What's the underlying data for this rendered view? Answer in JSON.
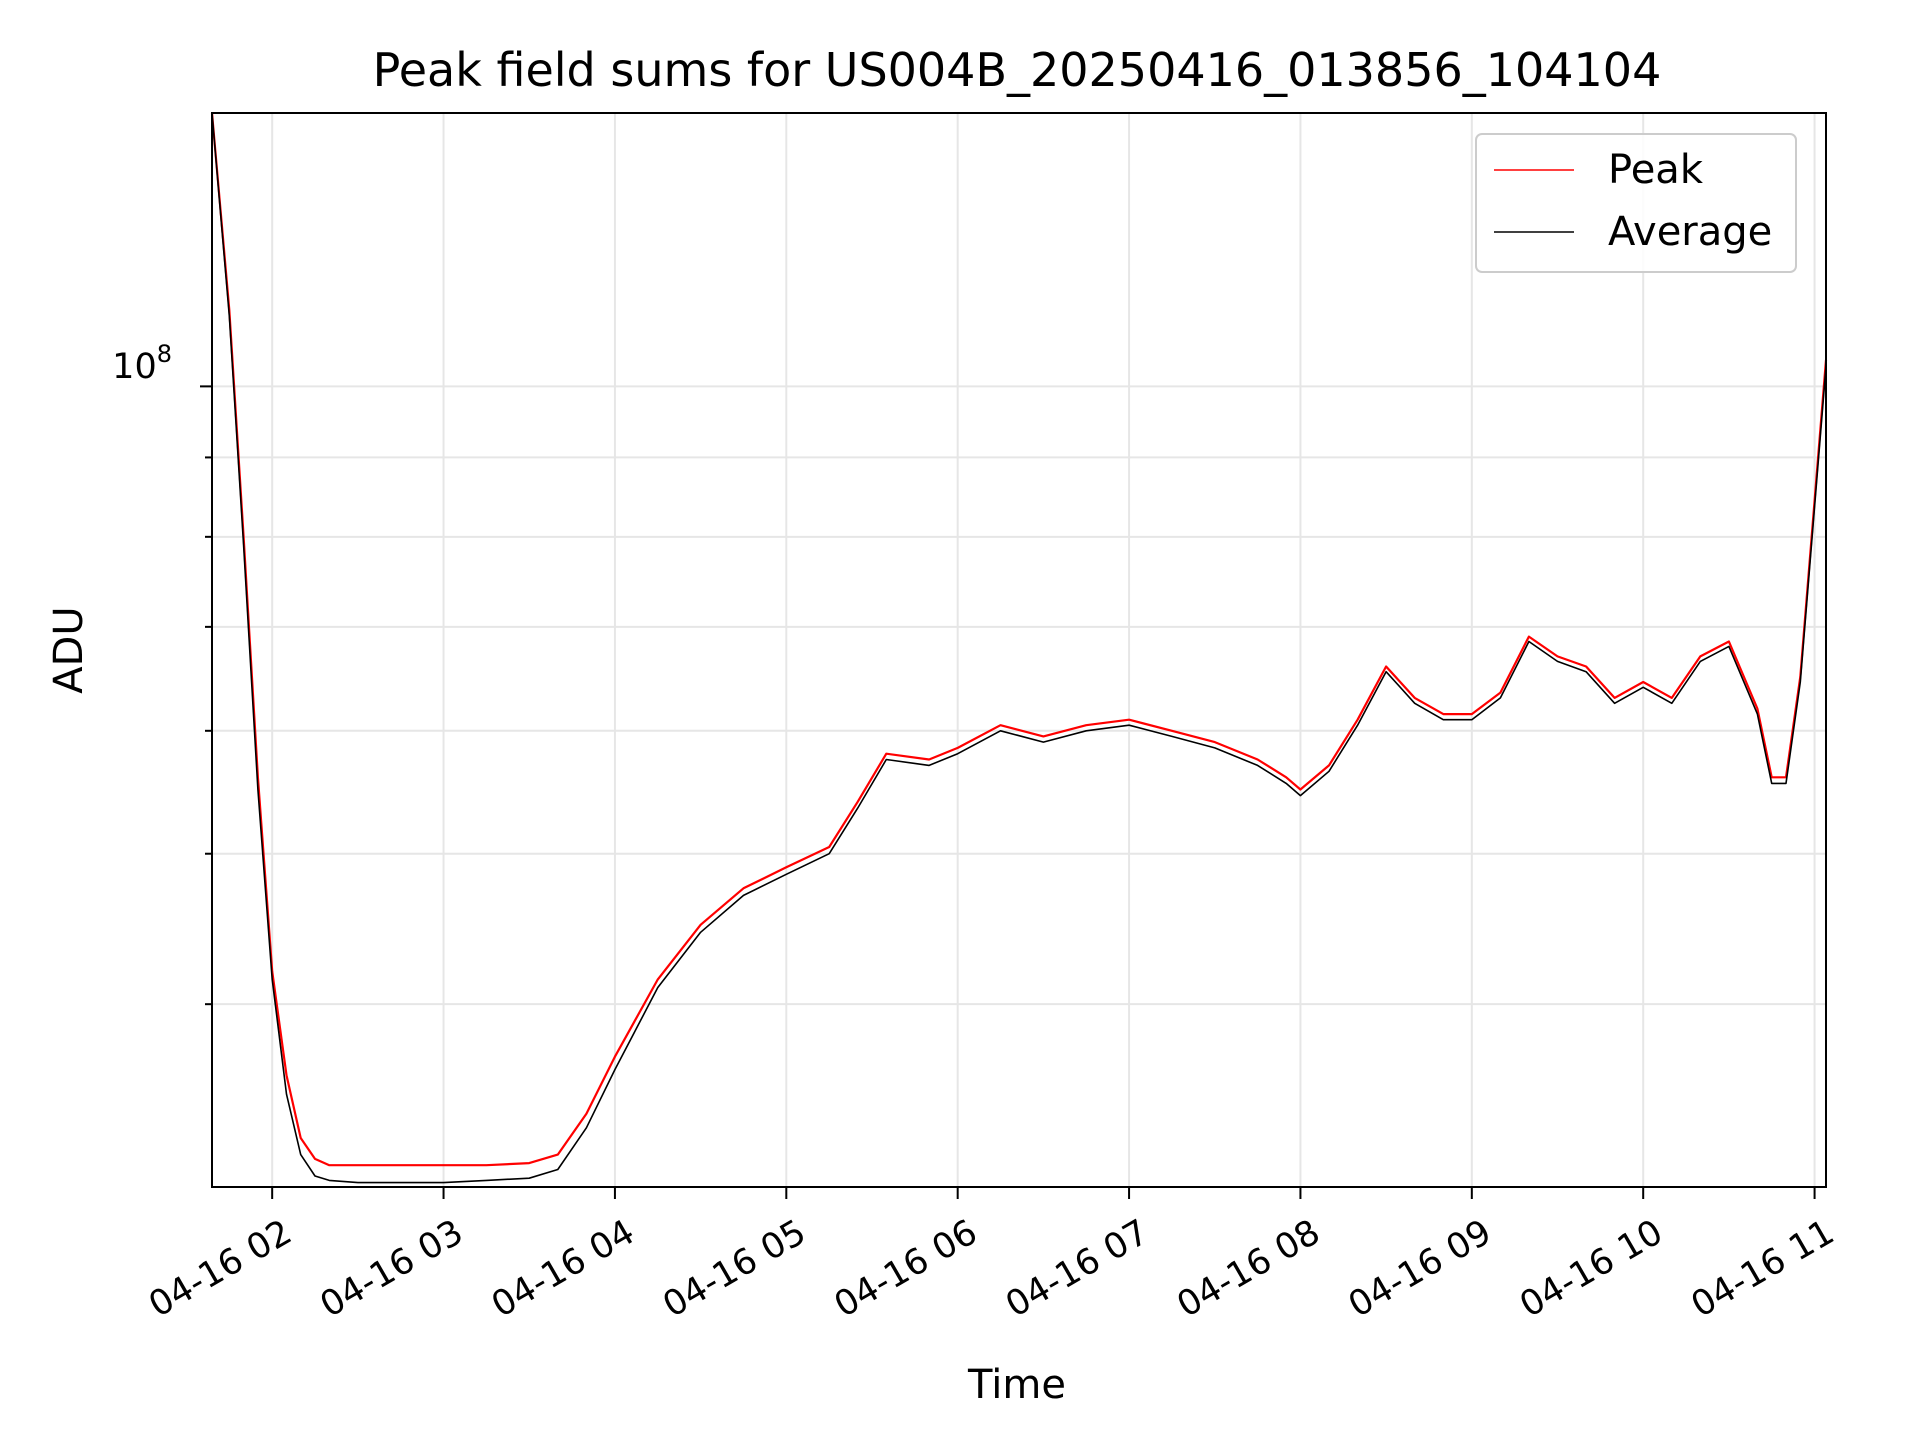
{
  "chart_data": {
    "type": "line",
    "title": "Peak field sums for US004B_20250416_013856_104104",
    "xlabel": "Time",
    "ylabel": "ADU",
    "y_scale": "log",
    "grid": true,
    "legend_placement": "upper-right",
    "xlim": [
      "2025-04-16 01:38:56",
      "2025-04-16 11:04"
    ],
    "ylim": [
      30500000,
      150000000
    ],
    "x_tick_labels": [
      "04-16 02",
      "04-16 03",
      "04-16 04",
      "04-16 05",
      "04-16 06",
      "04-16 07",
      "04-16 08",
      "04-16 09",
      "04-16 10",
      "04-16 11"
    ],
    "y_tick_label": {
      "base": "10",
      "exponent": "8"
    },
    "series": [
      {
        "name": "Peak",
        "color": "#ff0000",
        "x": [
          "01:38:56",
          "01:45",
          "01:50",
          "01:55",
          "02:00",
          "02:05",
          "02:10",
          "02:15",
          "02:20",
          "02:30",
          "02:45",
          "03:00",
          "03:15",
          "03:30",
          "03:40",
          "03:50",
          "04:00",
          "04:15",
          "04:30",
          "04:45",
          "05:00",
          "05:15",
          "05:25",
          "05:35",
          "05:50",
          "06:00",
          "06:15",
          "06:30",
          "06:45",
          "07:00",
          "07:15",
          "07:30",
          "07:45",
          "07:55",
          "08:00",
          "08:10",
          "08:20",
          "08:30",
          "08:40",
          "08:50",
          "09:00",
          "09:10",
          "09:20",
          "09:30",
          "09:40",
          "09:50",
          "10:00",
          "10:10",
          "10:20",
          "10:30",
          "10:40",
          "10:45",
          "10:50",
          "10:55",
          "11:04"
        ],
        "values": [
          150000000,
          112000000,
          80000000,
          56000000,
          42000000,
          36000000,
          32800000,
          31800000,
          31500000,
          31500000,
          31500000,
          31500000,
          31500000,
          31600000,
          32000000,
          34000000,
          37000000,
          41500000,
          45000000,
          47500000,
          49000000,
          50500000,
          54000000,
          58000000,
          57500000,
          58500000,
          60500000,
          59500000,
          60500000,
          61000000,
          60000000,
          59000000,
          57500000,
          56000000,
          55000000,
          57000000,
          61000000,
          66000000,
          63000000,
          61500000,
          61500000,
          63500000,
          69000000,
          67000000,
          66000000,
          63000000,
          64500000,
          63000000,
          67000000,
          68500000,
          62000000,
          56000000,
          56000000,
          65000000,
          104000000
        ]
      },
      {
        "name": "Average",
        "color": "#000000",
        "x": [
          "01:38:56",
          "01:45",
          "01:50",
          "01:55",
          "02:00",
          "02:05",
          "02:10",
          "02:15",
          "02:20",
          "02:30",
          "02:45",
          "03:00",
          "03:15",
          "03:30",
          "03:40",
          "03:50",
          "04:00",
          "04:15",
          "04:30",
          "04:45",
          "05:00",
          "05:15",
          "05:25",
          "05:35",
          "05:50",
          "06:00",
          "06:15",
          "06:30",
          "06:45",
          "07:00",
          "07:15",
          "07:30",
          "07:45",
          "07:55",
          "08:00",
          "08:10",
          "08:20",
          "08:30",
          "08:40",
          "08:50",
          "09:00",
          "09:10",
          "09:20",
          "09:30",
          "09:40",
          "09:50",
          "10:00",
          "10:10",
          "10:20",
          "10:30",
          "10:40",
          "10:45",
          "10:50",
          "10:55",
          "11:04"
        ],
        "values": [
          150000000,
          111000000,
          79000000,
          55000000,
          41500000,
          35000000,
          32000000,
          31000000,
          30800000,
          30700000,
          30700000,
          30700000,
          30800000,
          30900000,
          31300000,
          33300000,
          36300000,
          41000000,
          44500000,
          47000000,
          48500000,
          50000000,
          53500000,
          57500000,
          57000000,
          58000000,
          60000000,
          59000000,
          60000000,
          60500000,
          59500000,
          58500000,
          57000000,
          55500000,
          54500000,
          56500000,
          60500000,
          65500000,
          62500000,
          61000000,
          61000000,
          63000000,
          68500000,
          66500000,
          65500000,
          62500000,
          64000000,
          62500000,
          66500000,
          68000000,
          61500000,
          55500000,
          55500000,
          64500000,
          103000000
        ]
      }
    ]
  }
}
